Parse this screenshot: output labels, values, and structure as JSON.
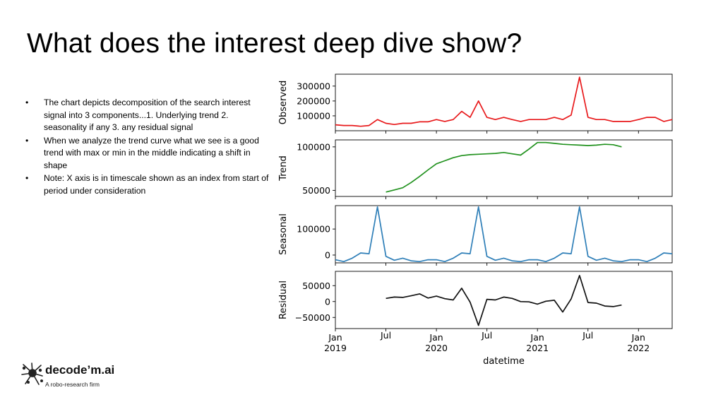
{
  "slide": {
    "title": "What does the interest deep dive show?",
    "bullets": [
      "The chart depicts decomposition of the search interest signal into 3 components...1. Underlying trend 2. seasonality if any 3. any residual signal",
      "When we analyze the trend curve what we see is a good trend with max or min in the middle indicating a shift in shape",
      "Note: X axis is in timescale shown as an index from start of period under consideration"
    ],
    "bullet_glyph": "•"
  },
  "logo": {
    "name": "decode’m.ai",
    "tagline": "A robo-research firm",
    "icon": "splash-logo-icon"
  },
  "chart_data": {
    "type": "line",
    "xlabel": "datetime",
    "x": [
      "2019-01",
      "2019-02",
      "2019-03",
      "2019-04",
      "2019-05",
      "2019-06",
      "2019-07",
      "2019-08",
      "2019-09",
      "2019-10",
      "2019-11",
      "2019-12",
      "2020-01",
      "2020-02",
      "2020-03",
      "2020-04",
      "2020-05",
      "2020-06",
      "2020-07",
      "2020-08",
      "2020-09",
      "2020-10",
      "2020-11",
      "2020-12",
      "2021-01",
      "2021-02",
      "2021-03",
      "2021-04",
      "2021-05",
      "2021-06",
      "2021-07",
      "2021-08",
      "2021-09",
      "2021-10",
      "2021-11",
      "2021-12",
      "2022-01",
      "2022-02",
      "2022-03",
      "2022-04",
      "2022-05"
    ],
    "xticks": [
      {
        "month": 0,
        "labels": [
          "Jan",
          "2019"
        ]
      },
      {
        "month": 6,
        "labels": [
          "Jul",
          ""
        ]
      },
      {
        "month": 12,
        "labels": [
          "Jan",
          "2020"
        ]
      },
      {
        "month": 18,
        "labels": [
          "Jul",
          ""
        ]
      },
      {
        "month": 24,
        "labels": [
          "Jan",
          "2021"
        ]
      },
      {
        "month": 30,
        "labels": [
          "Jul",
          ""
        ]
      },
      {
        "month": 36,
        "labels": [
          "Jan",
          "2022"
        ]
      }
    ],
    "panels": [
      {
        "ylabel": "Observed",
        "color": "#e8191b",
        "ylim": [
          0,
          380000
        ],
        "yticks": [
          {
            "value": 100000,
            "label": "100000"
          },
          {
            "value": 200000,
            "label": "200000"
          },
          {
            "value": 300000,
            "label": "300000"
          }
        ],
        "values": [
          40000,
          35000,
          35000,
          30000,
          35000,
          75000,
          50000,
          42000,
          50000,
          50000,
          60000,
          60000,
          75000,
          62000,
          75000,
          130000,
          90000,
          200000,
          90000,
          75000,
          90000,
          75000,
          62000,
          75000,
          75000,
          75000,
          90000,
          75000,
          105000,
          360000,
          90000,
          75000,
          75000,
          62000,
          62000,
          62000,
          75000,
          90000,
          90000,
          62000,
          75000
        ]
      },
      {
        "ylabel": "Trend",
        "color": "#22921f",
        "ylim": [
          43000,
          108000
        ],
        "yticks": [
          {
            "value": 50000,
            "label": "50000"
          },
          {
            "value": 100000,
            "label": "100000"
          }
        ],
        "values": [
          null,
          null,
          null,
          null,
          null,
          null,
          48000,
          50500,
          53000,
          59000,
          66000,
          73500,
          80500,
          84000,
          87500,
          90000,
          91000,
          91500,
          92000,
          92500,
          93500,
          92000,
          90500,
          97500,
          105000,
          105000,
          104000,
          103000,
          102500,
          102000,
          101500,
          102000,
          103000,
          102500,
          100000,
          null,
          null,
          null,
          null,
          null,
          null
        ]
      },
      {
        "ylabel": "Seasonal",
        "color": "#2f7fb8",
        "ylim": [
          -30000,
          190000
        ],
        "yticks": [
          {
            "value": 0,
            "label": "0"
          },
          {
            "value": 100000,
            "label": "100000"
          }
        ],
        "values": [
          -18000,
          -25000,
          -12000,
          8000,
          5000,
          185000,
          -5000,
          -20000,
          -12000,
          -22000,
          -25000,
          -18000,
          -18000,
          -25000,
          -12000,
          8000,
          5000,
          185000,
          -5000,
          -20000,
          -12000,
          -22000,
          -25000,
          -18000,
          -18000,
          -25000,
          -12000,
          8000,
          5000,
          185000,
          -5000,
          -20000,
          -12000,
          -22000,
          -25000,
          -18000,
          -18000,
          -25000,
          -12000,
          8000,
          5000
        ]
      },
      {
        "ylabel": "Residual",
        "color": "#111111",
        "ylim": [
          -85000,
          95000
        ],
        "yticks": [
          {
            "value": -50000,
            "label": "−50000"
          },
          {
            "value": 0,
            "label": "0"
          },
          {
            "value": 50000,
            "label": "50000"
          }
        ],
        "values": [
          null,
          null,
          null,
          null,
          null,
          null,
          10000,
          14000,
          13000,
          18000,
          24000,
          11000,
          17000,
          9000,
          5000,
          42000,
          -2000,
          -75000,
          7000,
          5000,
          14000,
          10000,
          0,
          -1000,
          -8000,
          1000,
          4000,
          -33000,
          8000,
          82000,
          -3000,
          -5000,
          -14000,
          -16000,
          -11000,
          null,
          null,
          null,
          null,
          null,
          null
        ]
      }
    ]
  }
}
